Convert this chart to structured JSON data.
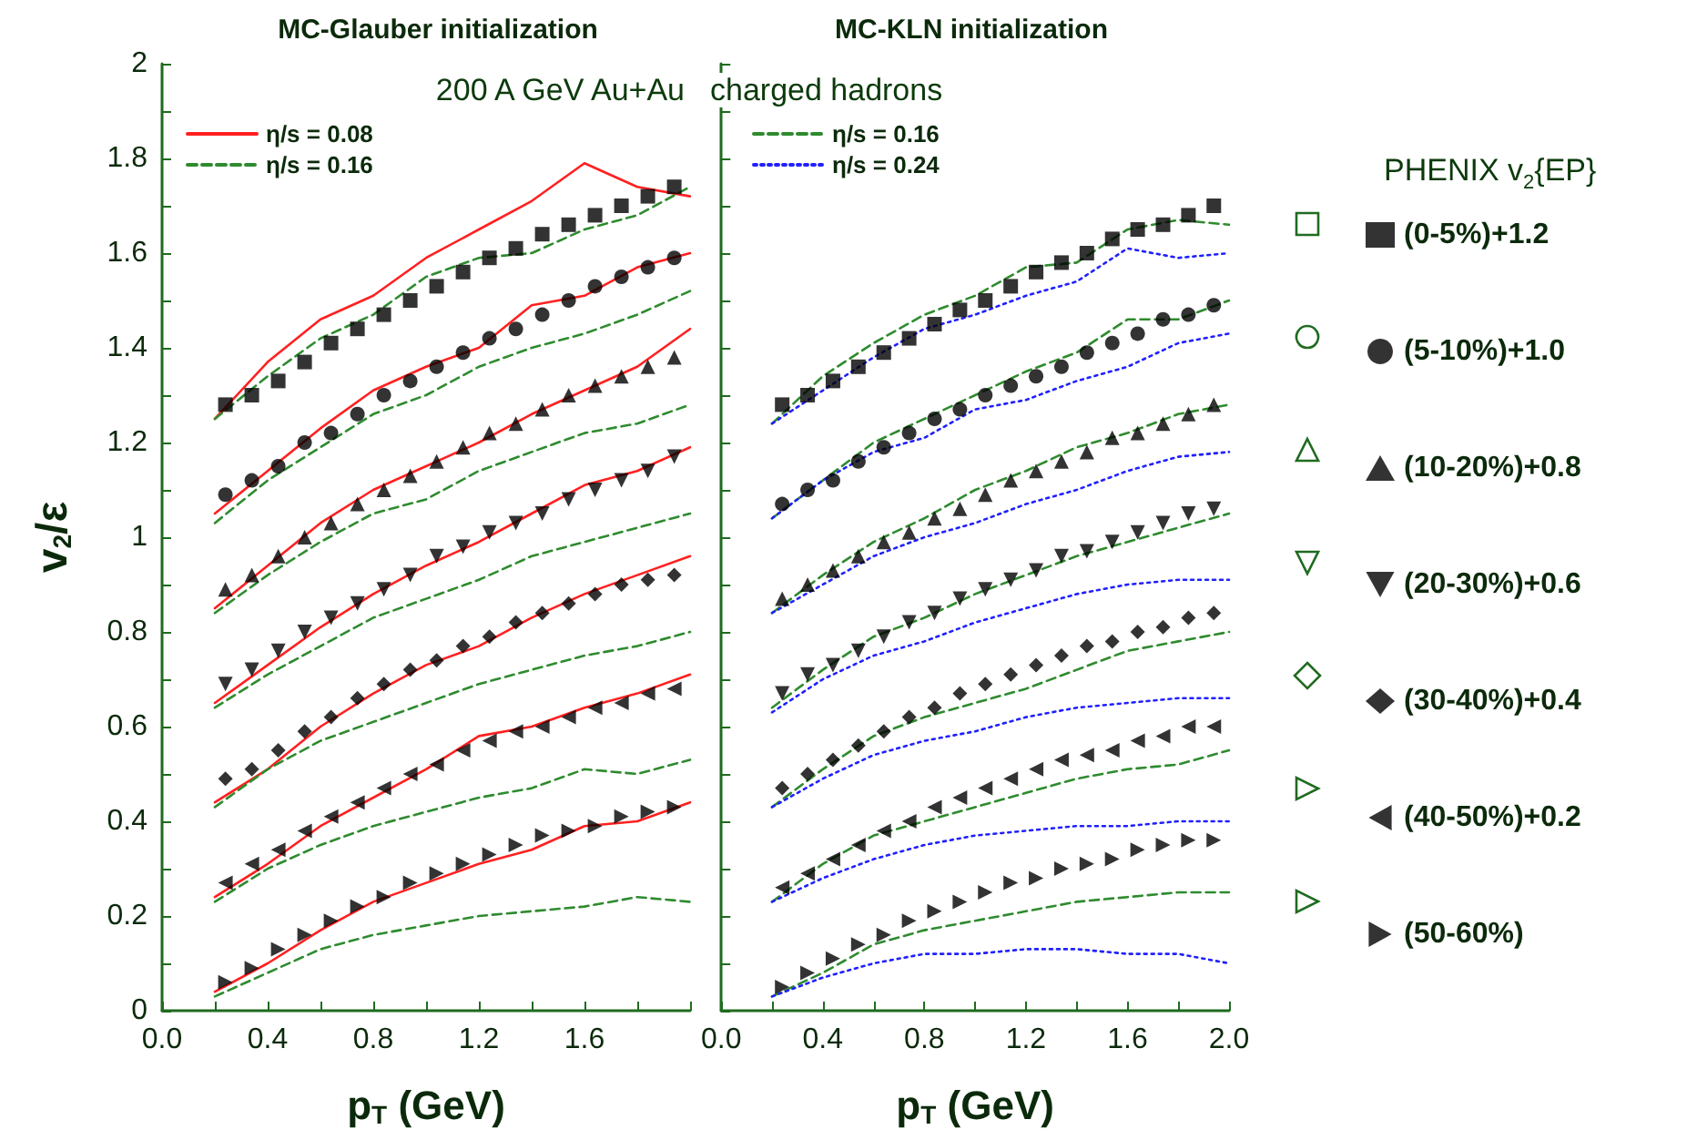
{
  "chart_data": [
    {
      "type": "line",
      "title": "MC-Glauber initialization",
      "xlabel": "p$_{T}$ (GeV)",
      "ylabel": "v$_{2}$/ε",
      "annotations": [
        "200 A GeV Au+Au"
      ],
      "legend": "top left",
      "grid": false,
      "xlim": [
        0,
        2
      ],
      "xticks": [
        {
          "value": 0,
          "label": "0.0"
        },
        {
          "value": 0.2,
          "label": null
        },
        {
          "value": 0.4,
          "label": "0.4"
        },
        {
          "value": 0.6,
          "label": null
        },
        {
          "value": 0.8,
          "label": "0.8"
        },
        {
          "value": 1.0,
          "label": null
        },
        {
          "value": 1.2,
          "label": "1.2"
        },
        {
          "value": 1.4,
          "label": null
        },
        {
          "value": 1.6,
          "label": "1.6"
        },
        {
          "value": 1.8,
          "label": null
        },
        {
          "value": 2.0,
          "label": null
        }
      ],
      "ylim": [
        0,
        2
      ],
      "yticks": [
        0,
        {
          "value": 0.1,
          "label": null
        },
        0.2,
        {
          "value": 0.3,
          "label": null
        },
        0.4,
        {
          "value": 0.5,
          "label": null
        },
        0.6,
        {
          "value": 0.7,
          "label": null
        },
        0.8,
        {
          "value": 0.9,
          "label": null
        },
        1,
        {
          "value": 1.1,
          "label": null
        },
        1.2,
        {
          "value": 1.3,
          "label": null
        },
        1.4,
        {
          "value": 1.5,
          "label": null
        },
        1.6,
        {
          "value": 1.7,
          "label": null
        },
        1.8,
        {
          "value": 1.9,
          "label": null
        },
        2
      ],
      "series": [
        {
          "type": "line",
          "name": "η/s = 0.08",
          "color": "#ff2020",
          "line_style": "solid",
          "marker": "none",
          "x": [
            0.2,
            0.4,
            0.6,
            0.8,
            1.0,
            1.2,
            1.4,
            1.6,
            1.8,
            2.0
          ],
          "values": [
            1.25,
            1.37,
            1.46,
            1.51,
            1.59,
            1.65,
            1.71,
            1.79,
            1.74,
            1.72
          ]
        },
        {
          "type": "line",
          "name": "η/s = 0.16",
          "color": "#2e8b2e",
          "line_style": "dashed",
          "marker": "none",
          "x": [
            0.2,
            0.4,
            0.6,
            0.8,
            1.0,
            1.2,
            1.4,
            1.6,
            1.8,
            2.0
          ],
          "values": [
            1.25,
            1.34,
            1.42,
            1.47,
            1.55,
            1.59,
            1.6,
            1.65,
            1.68,
            1.74
          ]
        },
        {
          "type": "line",
          "color": "#ff2020",
          "line_style": "solid",
          "marker": "none",
          "x": [
            0.2,
            0.4,
            0.6,
            0.8,
            1.0,
            1.2,
            1.4,
            1.6,
            1.8,
            2.0
          ],
          "values": [
            1.05,
            1.14,
            1.23,
            1.31,
            1.36,
            1.4,
            1.49,
            1.51,
            1.57,
            1.6
          ]
        },
        {
          "type": "line",
          "color": "#2e8b2e",
          "line_style": "dashed",
          "marker": "none",
          "x": [
            0.2,
            0.4,
            0.6,
            0.8,
            1.0,
            1.2,
            1.4,
            1.6,
            1.8,
            2.0
          ],
          "values": [
            1.03,
            1.12,
            1.19,
            1.26,
            1.3,
            1.36,
            1.4,
            1.43,
            1.47,
            1.52
          ]
        },
        {
          "type": "line",
          "color": "#ff2020",
          "line_style": "solid",
          "marker": "none",
          "x": [
            0.2,
            0.4,
            0.6,
            0.8,
            1.0,
            1.2,
            1.4,
            1.6,
            1.8,
            2.0
          ],
          "values": [
            0.85,
            0.94,
            1.03,
            1.1,
            1.15,
            1.2,
            1.26,
            1.31,
            1.36,
            1.44
          ]
        },
        {
          "type": "line",
          "color": "#2e8b2e",
          "line_style": "dashed",
          "marker": "none",
          "x": [
            0.2,
            0.4,
            0.6,
            0.8,
            1.0,
            1.2,
            1.4,
            1.6,
            1.8,
            2.0
          ],
          "values": [
            0.84,
            0.92,
            0.99,
            1.05,
            1.08,
            1.14,
            1.18,
            1.22,
            1.24,
            1.28
          ]
        },
        {
          "type": "line",
          "color": "#ff2020",
          "line_style": "solid",
          "marker": "none",
          "x": [
            0.2,
            0.4,
            0.6,
            0.8,
            1.0,
            1.2,
            1.4,
            1.6,
            1.8,
            2.0
          ],
          "values": [
            0.65,
            0.73,
            0.81,
            0.88,
            0.94,
            0.99,
            1.05,
            1.11,
            1.14,
            1.19
          ]
        },
        {
          "type": "line",
          "color": "#2e8b2e",
          "line_style": "dashed",
          "marker": "none",
          "x": [
            0.2,
            0.4,
            0.6,
            0.8,
            1.0,
            1.2,
            1.4,
            1.6,
            1.8,
            2.0
          ],
          "values": [
            0.64,
            0.71,
            0.77,
            0.83,
            0.87,
            0.91,
            0.96,
            0.99,
            1.02,
            1.05
          ]
        },
        {
          "type": "line",
          "color": "#ff2020",
          "line_style": "solid",
          "marker": "none",
          "x": [
            0.2,
            0.4,
            0.6,
            0.8,
            1.0,
            1.2,
            1.4,
            1.6,
            1.8,
            2.0
          ],
          "values": [
            0.44,
            0.51,
            0.6,
            0.67,
            0.73,
            0.77,
            0.83,
            0.88,
            0.92,
            0.96
          ]
        },
        {
          "type": "line",
          "color": "#2e8b2e",
          "line_style": "dashed",
          "marker": "none",
          "x": [
            0.2,
            0.4,
            0.6,
            0.8,
            1.0,
            1.2,
            1.4,
            1.6,
            1.8,
            2.0
          ],
          "values": [
            0.43,
            0.51,
            0.57,
            0.61,
            0.65,
            0.69,
            0.72,
            0.75,
            0.77,
            0.8
          ]
        },
        {
          "type": "line",
          "color": "#ff2020",
          "line_style": "solid",
          "marker": "none",
          "x": [
            0.2,
            0.4,
            0.6,
            0.8,
            1.0,
            1.2,
            1.4,
            1.6,
            1.8,
            2.0
          ],
          "values": [
            0.24,
            0.31,
            0.39,
            0.45,
            0.51,
            0.58,
            0.6,
            0.64,
            0.67,
            0.71
          ]
        },
        {
          "type": "line",
          "color": "#2e8b2e",
          "line_style": "dashed",
          "marker": "none",
          "x": [
            0.2,
            0.4,
            0.6,
            0.8,
            1.0,
            1.2,
            1.4,
            1.6,
            1.8,
            2.0
          ],
          "values": [
            0.23,
            0.3,
            0.35,
            0.39,
            0.42,
            0.45,
            0.47,
            0.51,
            0.5,
            0.53
          ]
        },
        {
          "type": "line",
          "color": "#ff2020",
          "line_style": "solid",
          "marker": "none",
          "x": [
            0.2,
            0.4,
            0.6,
            0.8,
            1.0,
            1.2,
            1.4,
            1.6,
            1.8,
            2.0
          ],
          "values": [
            0.04,
            0.1,
            0.17,
            0.23,
            0.27,
            0.31,
            0.34,
            0.39,
            0.4,
            0.44
          ]
        },
        {
          "type": "line",
          "color": "#2e8b2e",
          "line_style": "dashed",
          "marker": "none",
          "x": [
            0.2,
            0.4,
            0.6,
            0.8,
            1.0,
            1.2,
            1.4,
            1.6,
            1.8,
            2.0
          ],
          "values": [
            0.03,
            0.08,
            0.13,
            0.16,
            0.18,
            0.2,
            0.21,
            0.22,
            0.24,
            0.23
          ]
        },
        {
          "type": "scatter",
          "color": "#000000",
          "marker": "square",
          "x": [
            0.24,
            0.34,
            0.44,
            0.54,
            0.64,
            0.74,
            0.84,
            0.94,
            1.04,
            1.14,
            1.24,
            1.34,
            1.44,
            1.54,
            1.64,
            1.74,
            1.84,
            1.94
          ],
          "values": [
            1.28,
            1.3,
            1.33,
            1.37,
            1.41,
            1.44,
            1.47,
            1.5,
            1.53,
            1.56,
            1.59,
            1.61,
            1.64,
            1.66,
            1.68,
            1.7,
            1.72,
            1.74
          ]
        },
        {
          "type": "scatter",
          "color": "#000000",
          "marker": "circle",
          "x": [
            0.24,
            0.34,
            0.44,
            0.54,
            0.64,
            0.74,
            0.84,
            0.94,
            1.04,
            1.14,
            1.24,
            1.34,
            1.44,
            1.54,
            1.64,
            1.74,
            1.84,
            1.94
          ],
          "values": [
            1.09,
            1.12,
            1.15,
            1.2,
            1.22,
            1.26,
            1.3,
            1.33,
            1.36,
            1.39,
            1.42,
            1.44,
            1.47,
            1.5,
            1.53,
            1.55,
            1.57,
            1.59
          ]
        },
        {
          "type": "scatter",
          "color": "#000000",
          "marker": "triangle",
          "x": [
            0.24,
            0.34,
            0.44,
            0.54,
            0.64,
            0.74,
            0.84,
            0.94,
            1.04,
            1.14,
            1.24,
            1.34,
            1.44,
            1.54,
            1.64,
            1.74,
            1.84,
            1.94
          ],
          "values": [
            0.89,
            0.92,
            0.96,
            1.0,
            1.03,
            1.07,
            1.1,
            1.13,
            1.16,
            1.19,
            1.22,
            1.24,
            1.27,
            1.3,
            1.32,
            1.34,
            1.36,
            1.38
          ]
        },
        {
          "type": "scatter",
          "color": "#000000",
          "marker": "triangle-down",
          "x": [
            0.24,
            0.34,
            0.44,
            0.54,
            0.64,
            0.74,
            0.84,
            0.94,
            1.04,
            1.14,
            1.24,
            1.34,
            1.44,
            1.54,
            1.64,
            1.74,
            1.84,
            1.94
          ],
          "values": [
            0.69,
            0.72,
            0.76,
            0.8,
            0.83,
            0.86,
            0.89,
            0.92,
            0.96,
            0.98,
            1.01,
            1.03,
            1.05,
            1.08,
            1.1,
            1.12,
            1.14,
            1.17
          ]
        },
        {
          "type": "scatter",
          "color": "#000000",
          "marker": "diamond",
          "x": [
            0.24,
            0.34,
            0.44,
            0.54,
            0.64,
            0.74,
            0.84,
            0.94,
            1.04,
            1.14,
            1.24,
            1.34,
            1.44,
            1.54,
            1.64,
            1.74,
            1.84,
            1.94
          ],
          "values": [
            0.49,
            0.51,
            0.55,
            0.59,
            0.62,
            0.66,
            0.69,
            0.72,
            0.74,
            0.77,
            0.79,
            0.82,
            0.84,
            0.86,
            0.88,
            0.9,
            0.91,
            0.92
          ]
        },
        {
          "type": "scatter",
          "color": "#000000",
          "marker": "triangle-left",
          "x": [
            0.24,
            0.34,
            0.44,
            0.54,
            0.64,
            0.74,
            0.84,
            0.94,
            1.04,
            1.14,
            1.24,
            1.34,
            1.44,
            1.54,
            1.64,
            1.74,
            1.84,
            1.94
          ],
          "values": [
            0.27,
            0.31,
            0.34,
            0.38,
            0.41,
            0.44,
            0.47,
            0.5,
            0.52,
            0.55,
            0.57,
            0.59,
            0.6,
            0.62,
            0.64,
            0.65,
            0.67,
            0.68
          ]
        },
        {
          "type": "scatter",
          "color": "#000000",
          "marker": "triangle-right",
          "x": [
            0.24,
            0.34,
            0.44,
            0.54,
            0.64,
            0.74,
            0.84,
            0.94,
            1.04,
            1.14,
            1.24,
            1.34,
            1.44,
            1.54,
            1.64,
            1.74,
            1.84,
            1.94
          ],
          "values": [
            0.06,
            0.09,
            0.13,
            0.16,
            0.19,
            0.22,
            0.24,
            0.27,
            0.29,
            0.31,
            0.33,
            0.35,
            0.37,
            0.38,
            0.39,
            0.41,
            0.42,
            0.43
          ]
        }
      ]
    },
    {
      "type": "line",
      "title": "MC-KLN initialization",
      "xlabel": "p$_{T}$ (GeV)",
      "annotations": [
        "charged hadrons",
        "PHENIX v$_{2}${EP}"
      ],
      "legend": "right",
      "grid": false,
      "tick_labels": "x",
      "xlim": [
        0,
        2
      ],
      "xticks": [
        {
          "value": 0,
          "label": "0.0"
        },
        {
          "value": 0.2,
          "label": null
        },
        {
          "value": 0.4,
          "label": "0.4"
        },
        {
          "value": 0.6,
          "label": null
        },
        {
          "value": 0.8,
          "label": "0.8"
        },
        {
          "value": 1.0,
          "label": null
        },
        {
          "value": 1.2,
          "label": "1.2"
        },
        {
          "value": 1.4,
          "label": null
        },
        {
          "value": 1.6,
          "label": "1.6"
        },
        {
          "value": 1.8,
          "label": null
        },
        {
          "value": 2.0,
          "label": "2.0"
        }
      ],
      "ylim": [
        0,
        2
      ],
      "yticks": [
        0,
        {
          "value": 0.1,
          "label": null
        },
        0.2,
        {
          "value": 0.3,
          "label": null
        },
        0.4,
        {
          "value": 0.5,
          "label": null
        },
        0.6,
        {
          "value": 0.7,
          "label": null
        },
        0.8,
        {
          "value": 0.9,
          "label": null
        },
        1,
        {
          "value": 1.1,
          "label": null
        },
        1.2,
        {
          "value": 1.3,
          "label": null
        },
        1.4,
        {
          "value": 1.5,
          "label": null
        },
        1.6,
        {
          "value": 1.7,
          "label": null
        },
        1.8,
        {
          "value": 1.9,
          "label": null
        },
        2
      ],
      "series": [
        {
          "type": "line",
          "name": "η/s = 0.16",
          "color": "#2e8b2e",
          "line_style": "dashed",
          "marker": "none",
          "x": [
            0.2,
            0.4,
            0.6,
            0.8,
            1.0,
            1.2,
            1.4,
            1.6,
            1.8,
            2.0
          ],
          "values": [
            1.24,
            1.34,
            1.41,
            1.47,
            1.51,
            1.57,
            1.58,
            1.65,
            1.67,
            1.66
          ]
        },
        {
          "type": "line",
          "name": "η/s = 0.24",
          "color": "#2020ff",
          "line_style": "dotted",
          "marker": "none",
          "x": [
            0.2,
            0.4,
            0.6,
            0.8,
            1.0,
            1.2,
            1.4,
            1.6,
            1.8,
            2.0
          ],
          "values": [
            1.24,
            1.31,
            1.38,
            1.44,
            1.47,
            1.51,
            1.54,
            1.61,
            1.59,
            1.6
          ]
        },
        {
          "type": "line",
          "color": "#2e8b2e",
          "line_style": "dashed",
          "marker": "none",
          "x": [
            0.2,
            0.4,
            0.6,
            0.8,
            1.0,
            1.2,
            1.4,
            1.6,
            1.8,
            2.0
          ],
          "values": [
            1.04,
            1.12,
            1.2,
            1.25,
            1.3,
            1.35,
            1.39,
            1.46,
            1.46,
            1.5
          ]
        },
        {
          "type": "line",
          "color": "#2020ff",
          "line_style": "dotted",
          "marker": "none",
          "x": [
            0.2,
            0.4,
            0.6,
            0.8,
            1.0,
            1.2,
            1.4,
            1.6,
            1.8,
            2.0
          ],
          "values": [
            1.04,
            1.12,
            1.18,
            1.21,
            1.27,
            1.29,
            1.33,
            1.36,
            1.41,
            1.43
          ]
        },
        {
          "type": "line",
          "color": "#2e8b2e",
          "line_style": "dashed",
          "marker": "none",
          "x": [
            0.2,
            0.4,
            0.6,
            0.8,
            1.0,
            1.2,
            1.4,
            1.6,
            1.8,
            2.0
          ],
          "values": [
            0.84,
            0.92,
            0.99,
            1.04,
            1.1,
            1.14,
            1.19,
            1.22,
            1.26,
            1.28
          ]
        },
        {
          "type": "line",
          "color": "#2020ff",
          "line_style": "dotted",
          "marker": "none",
          "x": [
            0.2,
            0.4,
            0.6,
            0.8,
            1.0,
            1.2,
            1.4,
            1.6,
            1.8,
            2.0
          ],
          "values": [
            0.84,
            0.9,
            0.96,
            1.0,
            1.03,
            1.07,
            1.1,
            1.14,
            1.17,
            1.18
          ]
        },
        {
          "type": "line",
          "color": "#2e8b2e",
          "line_style": "dashed",
          "marker": "none",
          "x": [
            0.2,
            0.4,
            0.6,
            0.8,
            1.0,
            1.2,
            1.4,
            1.6,
            1.8,
            2.0
          ],
          "values": [
            0.64,
            0.72,
            0.79,
            0.83,
            0.88,
            0.92,
            0.96,
            0.99,
            1.02,
            1.05
          ]
        },
        {
          "type": "line",
          "color": "#2020ff",
          "line_style": "dotted",
          "marker": "none",
          "x": [
            0.2,
            0.4,
            0.6,
            0.8,
            1.0,
            1.2,
            1.4,
            1.6,
            1.8,
            2.0
          ],
          "values": [
            0.63,
            0.7,
            0.75,
            0.78,
            0.82,
            0.85,
            0.88,
            0.9,
            0.91,
            0.91
          ]
        },
        {
          "type": "line",
          "color": "#2e8b2e",
          "line_style": "dashed",
          "marker": "none",
          "x": [
            0.2,
            0.4,
            0.6,
            0.8,
            1.0,
            1.2,
            1.4,
            1.6,
            1.8,
            2.0
          ],
          "values": [
            0.43,
            0.51,
            0.58,
            0.62,
            0.65,
            0.68,
            0.72,
            0.76,
            0.78,
            0.8
          ]
        },
        {
          "type": "line",
          "color": "#2020ff",
          "line_style": "dotted",
          "marker": "none",
          "x": [
            0.2,
            0.4,
            0.6,
            0.8,
            1.0,
            1.2,
            1.4,
            1.6,
            1.8,
            2.0
          ],
          "values": [
            0.43,
            0.49,
            0.54,
            0.57,
            0.59,
            0.62,
            0.64,
            0.65,
            0.66,
            0.66
          ]
        },
        {
          "type": "line",
          "color": "#2e8b2e",
          "line_style": "dashed",
          "marker": "none",
          "x": [
            0.2,
            0.4,
            0.6,
            0.8,
            1.0,
            1.2,
            1.4,
            1.6,
            1.8,
            2.0
          ],
          "values": [
            0.23,
            0.31,
            0.37,
            0.4,
            0.43,
            0.46,
            0.49,
            0.51,
            0.52,
            0.55
          ]
        },
        {
          "type": "line",
          "color": "#2020ff",
          "line_style": "dotted",
          "marker": "none",
          "x": [
            0.2,
            0.4,
            0.6,
            0.8,
            1.0,
            1.2,
            1.4,
            1.6,
            1.8,
            2.0
          ],
          "values": [
            0.23,
            0.28,
            0.32,
            0.35,
            0.37,
            0.38,
            0.39,
            0.39,
            0.4,
            0.4
          ]
        },
        {
          "type": "line",
          "color": "#2e8b2e",
          "line_style": "dashed",
          "marker": "none",
          "x": [
            0.2,
            0.4,
            0.6,
            0.8,
            1.0,
            1.2,
            1.4,
            1.6,
            1.8,
            2.0
          ],
          "values": [
            0.03,
            0.08,
            0.14,
            0.17,
            0.19,
            0.21,
            0.23,
            0.24,
            0.25,
            0.25
          ]
        },
        {
          "type": "line",
          "color": "#2020ff",
          "line_style": "dotted",
          "marker": "none",
          "x": [
            0.2,
            0.4,
            0.6,
            0.8,
            1.0,
            1.2,
            1.4,
            1.6,
            1.8,
            2.0
          ],
          "values": [
            0.03,
            0.07,
            0.1,
            0.12,
            0.12,
            0.13,
            0.13,
            0.12,
            0.12,
            0.1
          ]
        },
        {
          "type": "scatter",
          "name": "(0-5%)+1.2",
          "color": "#000000",
          "marker": "square",
          "x": [
            0.24,
            0.34,
            0.44,
            0.54,
            0.64,
            0.74,
            0.84,
            0.94,
            1.04,
            1.14,
            1.24,
            1.34,
            1.44,
            1.54,
            1.64,
            1.74,
            1.84,
            1.94
          ],
          "values": [
            1.28,
            1.3,
            1.33,
            1.36,
            1.39,
            1.42,
            1.45,
            1.48,
            1.5,
            1.53,
            1.56,
            1.58,
            1.6,
            1.63,
            1.65,
            1.66,
            1.68,
            1.7
          ]
        },
        {
          "type": "scatter",
          "name": "(5-10%)+1.0",
          "color": "#000000",
          "marker": "circle",
          "x": [
            0.24,
            0.34,
            0.44,
            0.54,
            0.64,
            0.74,
            0.84,
            0.94,
            1.04,
            1.14,
            1.24,
            1.34,
            1.44,
            1.54,
            1.64,
            1.74,
            1.84,
            1.94
          ],
          "values": [
            1.07,
            1.1,
            1.12,
            1.16,
            1.19,
            1.22,
            1.25,
            1.27,
            1.3,
            1.32,
            1.34,
            1.36,
            1.39,
            1.41,
            1.43,
            1.46,
            1.47,
            1.49
          ]
        },
        {
          "type": "scatter",
          "name": "(10-20%)+0.8",
          "color": "#000000",
          "marker": "triangle",
          "x": [
            0.24,
            0.34,
            0.44,
            0.54,
            0.64,
            0.74,
            0.84,
            0.94,
            1.04,
            1.14,
            1.24,
            1.34,
            1.44,
            1.54,
            1.64,
            1.74,
            1.84,
            1.94
          ],
          "values": [
            0.87,
            0.9,
            0.93,
            0.96,
            0.99,
            1.01,
            1.04,
            1.06,
            1.09,
            1.12,
            1.14,
            1.16,
            1.18,
            1.21,
            1.22,
            1.24,
            1.26,
            1.28
          ]
        },
        {
          "type": "scatter",
          "name": "(20-30%)+0.6",
          "color": "#000000",
          "marker": "triangle-down",
          "x": [
            0.24,
            0.34,
            0.44,
            0.54,
            0.64,
            0.74,
            0.84,
            0.94,
            1.04,
            1.14,
            1.24,
            1.34,
            1.44,
            1.54,
            1.64,
            1.74,
            1.84,
            1.94
          ],
          "values": [
            0.67,
            0.71,
            0.73,
            0.76,
            0.79,
            0.82,
            0.84,
            0.87,
            0.89,
            0.91,
            0.93,
            0.96,
            0.97,
            0.99,
            1.01,
            1.03,
            1.05,
            1.06
          ]
        },
        {
          "type": "scatter",
          "name": "(30-40%)+0.4",
          "color": "#000000",
          "marker": "diamond",
          "x": [
            0.24,
            0.34,
            0.44,
            0.54,
            0.64,
            0.74,
            0.84,
            0.94,
            1.04,
            1.14,
            1.24,
            1.34,
            1.44,
            1.54,
            1.64,
            1.74,
            1.84,
            1.94
          ],
          "values": [
            0.47,
            0.5,
            0.53,
            0.56,
            0.59,
            0.62,
            0.64,
            0.67,
            0.69,
            0.71,
            0.73,
            0.75,
            0.77,
            0.78,
            0.8,
            0.81,
            0.83,
            0.84
          ]
        },
        {
          "type": "scatter",
          "name": "(40-50%)+0.2",
          "color": "#000000",
          "marker": "triangle-left",
          "x": [
            0.24,
            0.34,
            0.44,
            0.54,
            0.64,
            0.74,
            0.84,
            0.94,
            1.04,
            1.14,
            1.24,
            1.34,
            1.44,
            1.54,
            1.64,
            1.74,
            1.84,
            1.94
          ],
          "values": [
            0.26,
            0.29,
            0.32,
            0.35,
            0.38,
            0.4,
            0.43,
            0.45,
            0.47,
            0.49,
            0.51,
            0.53,
            0.54,
            0.55,
            0.57,
            0.58,
            0.6,
            0.6
          ]
        },
        {
          "type": "scatter",
          "name": "(50-60%)",
          "color": "#000000",
          "marker": "triangle-right",
          "x": [
            0.24,
            0.34,
            0.44,
            0.54,
            0.64,
            0.74,
            0.84,
            0.94,
            1.04,
            1.14,
            1.24,
            1.34,
            1.44,
            1.54,
            1.64,
            1.74,
            1.84,
            1.94
          ],
          "values": [
            0.05,
            0.08,
            0.11,
            0.14,
            0.16,
            0.19,
            0.21,
            0.23,
            0.25,
            0.27,
            0.28,
            0.3,
            0.31,
            0.32,
            0.34,
            0.35,
            0.36,
            0.36
          ]
        }
      ]
    }
  ]
}
